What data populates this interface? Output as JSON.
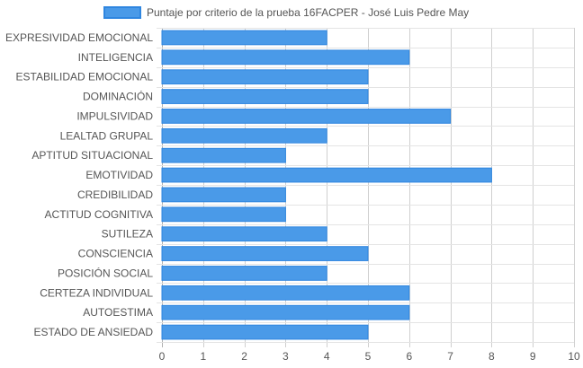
{
  "chart_data": {
    "type": "bar",
    "orientation": "horizontal",
    "categories": [
      "EXPRESIVIDAD EMOCIONAL",
      "INTELIGENCIA",
      "ESTABILIDAD EMOCIONAL",
      "DOMINACIÓN",
      "IMPULSIVIDAD",
      "LEALTAD GRUPAL",
      "APTITUD SITUACIONAL",
      "EMOTIVIDAD",
      "CREDIBILIDAD",
      "ACTITUD COGNITIVA",
      "SUTILEZA",
      "CONSCIENCIA",
      "POSICIÓN SOCIAL",
      "CERTEZA INDIVIDUAL",
      "AUTOESTIMA",
      "ESTADO DE ANSIEDAD"
    ],
    "series": [
      {
        "name": "Puntaje por criterio de la prueba 16FACPER - José Luis Pedre May",
        "values": [
          4,
          6,
          5,
          5,
          7,
          4,
          3,
          8,
          3,
          3,
          4,
          5,
          4,
          6,
          6,
          5
        ],
        "color": "#4a9ae8",
        "border_color": "#2f86e0"
      }
    ],
    "xlim": [
      0,
      10
    ],
    "x_ticks": [
      "0",
      "1",
      "2",
      "3",
      "4",
      "5",
      "6",
      "7",
      "8",
      "9",
      "10"
    ],
    "grid": true,
    "legend_position": "top",
    "title": "",
    "xlabel": "",
    "ylabel": ""
  }
}
